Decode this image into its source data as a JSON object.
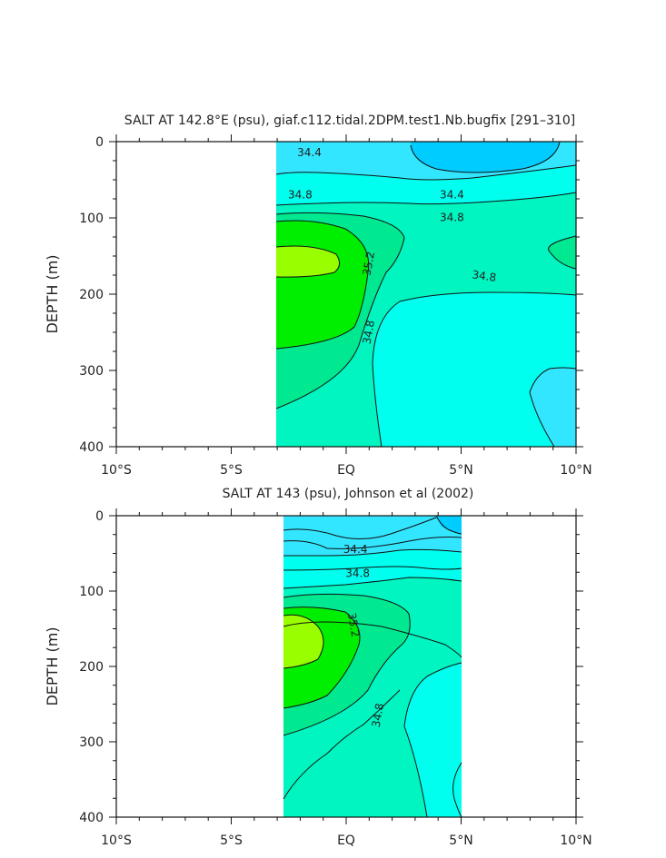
{
  "colors": {
    "c34_2": "#00ccff",
    "c34_4": "#33e6ff",
    "c34_6": "#00ffee",
    "c34_8": "#00f5c0",
    "c35_0": "#00e890",
    "c35_2": "#00ee00",
    "c35_4": "#99ff00",
    "line": "#111111"
  },
  "chart_data": [
    {
      "type": "contour",
      "title": "SALT AT 142.8°E (psu), giaf.c112.tidal.2DPM.test1.Nb.bugfix [291–310]",
      "ylabel": "DEPTH (m)",
      "xlabel": "",
      "x_ticklabels": [
        "10°S",
        "5°S",
        "EQ",
        "5°N",
        "10°N"
      ],
      "x_ticks": [
        -10,
        -5,
        0,
        5,
        10
      ],
      "y_ticklabels": [
        "0",
        "100",
        "200",
        "300",
        "400"
      ],
      "y_ticks": [
        0,
        100,
        200,
        300,
        400
      ],
      "xlim": [
        -10,
        10
      ],
      "ylim": [
        400,
        0
      ],
      "data_xrange": [
        -3.0,
        10.0
      ],
      "contour_labels": [
        {
          "text": "34.4",
          "x": -1.6,
          "y": 15,
          "rot": 0
        },
        {
          "text": "34.8",
          "x": -2.0,
          "y": 70,
          "rot": 0
        },
        {
          "text": "34.4",
          "x": 4.6,
          "y": 70,
          "rot": 0
        },
        {
          "text": "34.8",
          "x": 4.6,
          "y": 100,
          "rot": 0
        },
        {
          "text": "35.2",
          "x": 1.0,
          "y": 160,
          "rot": -80
        },
        {
          "text": "34.8",
          "x": 6.0,
          "y": 177,
          "rot": 8
        },
        {
          "text": "34.8",
          "x": 1.0,
          "y": 250,
          "rot": -80
        }
      ]
    },
    {
      "type": "contour",
      "title": "SALT AT 143 (psu), Johnson et al (2002)",
      "ylabel": "DEPTH (m)",
      "xlabel": "",
      "x_ticklabels": [
        "10°S",
        "5°S",
        "EQ",
        "5°N",
        "10°N"
      ],
      "x_ticks": [
        -10,
        -5,
        0,
        5,
        10
      ],
      "y_ticklabels": [
        "0",
        "100",
        "200",
        "300",
        "400"
      ],
      "y_ticks": [
        0,
        100,
        200,
        300,
        400
      ],
      "xlim": [
        -10,
        10
      ],
      "ylim": [
        400,
        0
      ],
      "data_xrange": [
        -2.7,
        5.0
      ],
      "contour_labels": [
        {
          "text": "34.4",
          "x": 0.4,
          "y": 45,
          "rot": 0
        },
        {
          "text": "34.8",
          "x": 0.5,
          "y": 77,
          "rot": 0
        },
        {
          "text": "35.2",
          "x": 0.3,
          "y": 145,
          "rot": 80
        },
        {
          "text": "34.8",
          "x": 1.4,
          "y": 265,
          "rot": -80
        }
      ]
    }
  ]
}
